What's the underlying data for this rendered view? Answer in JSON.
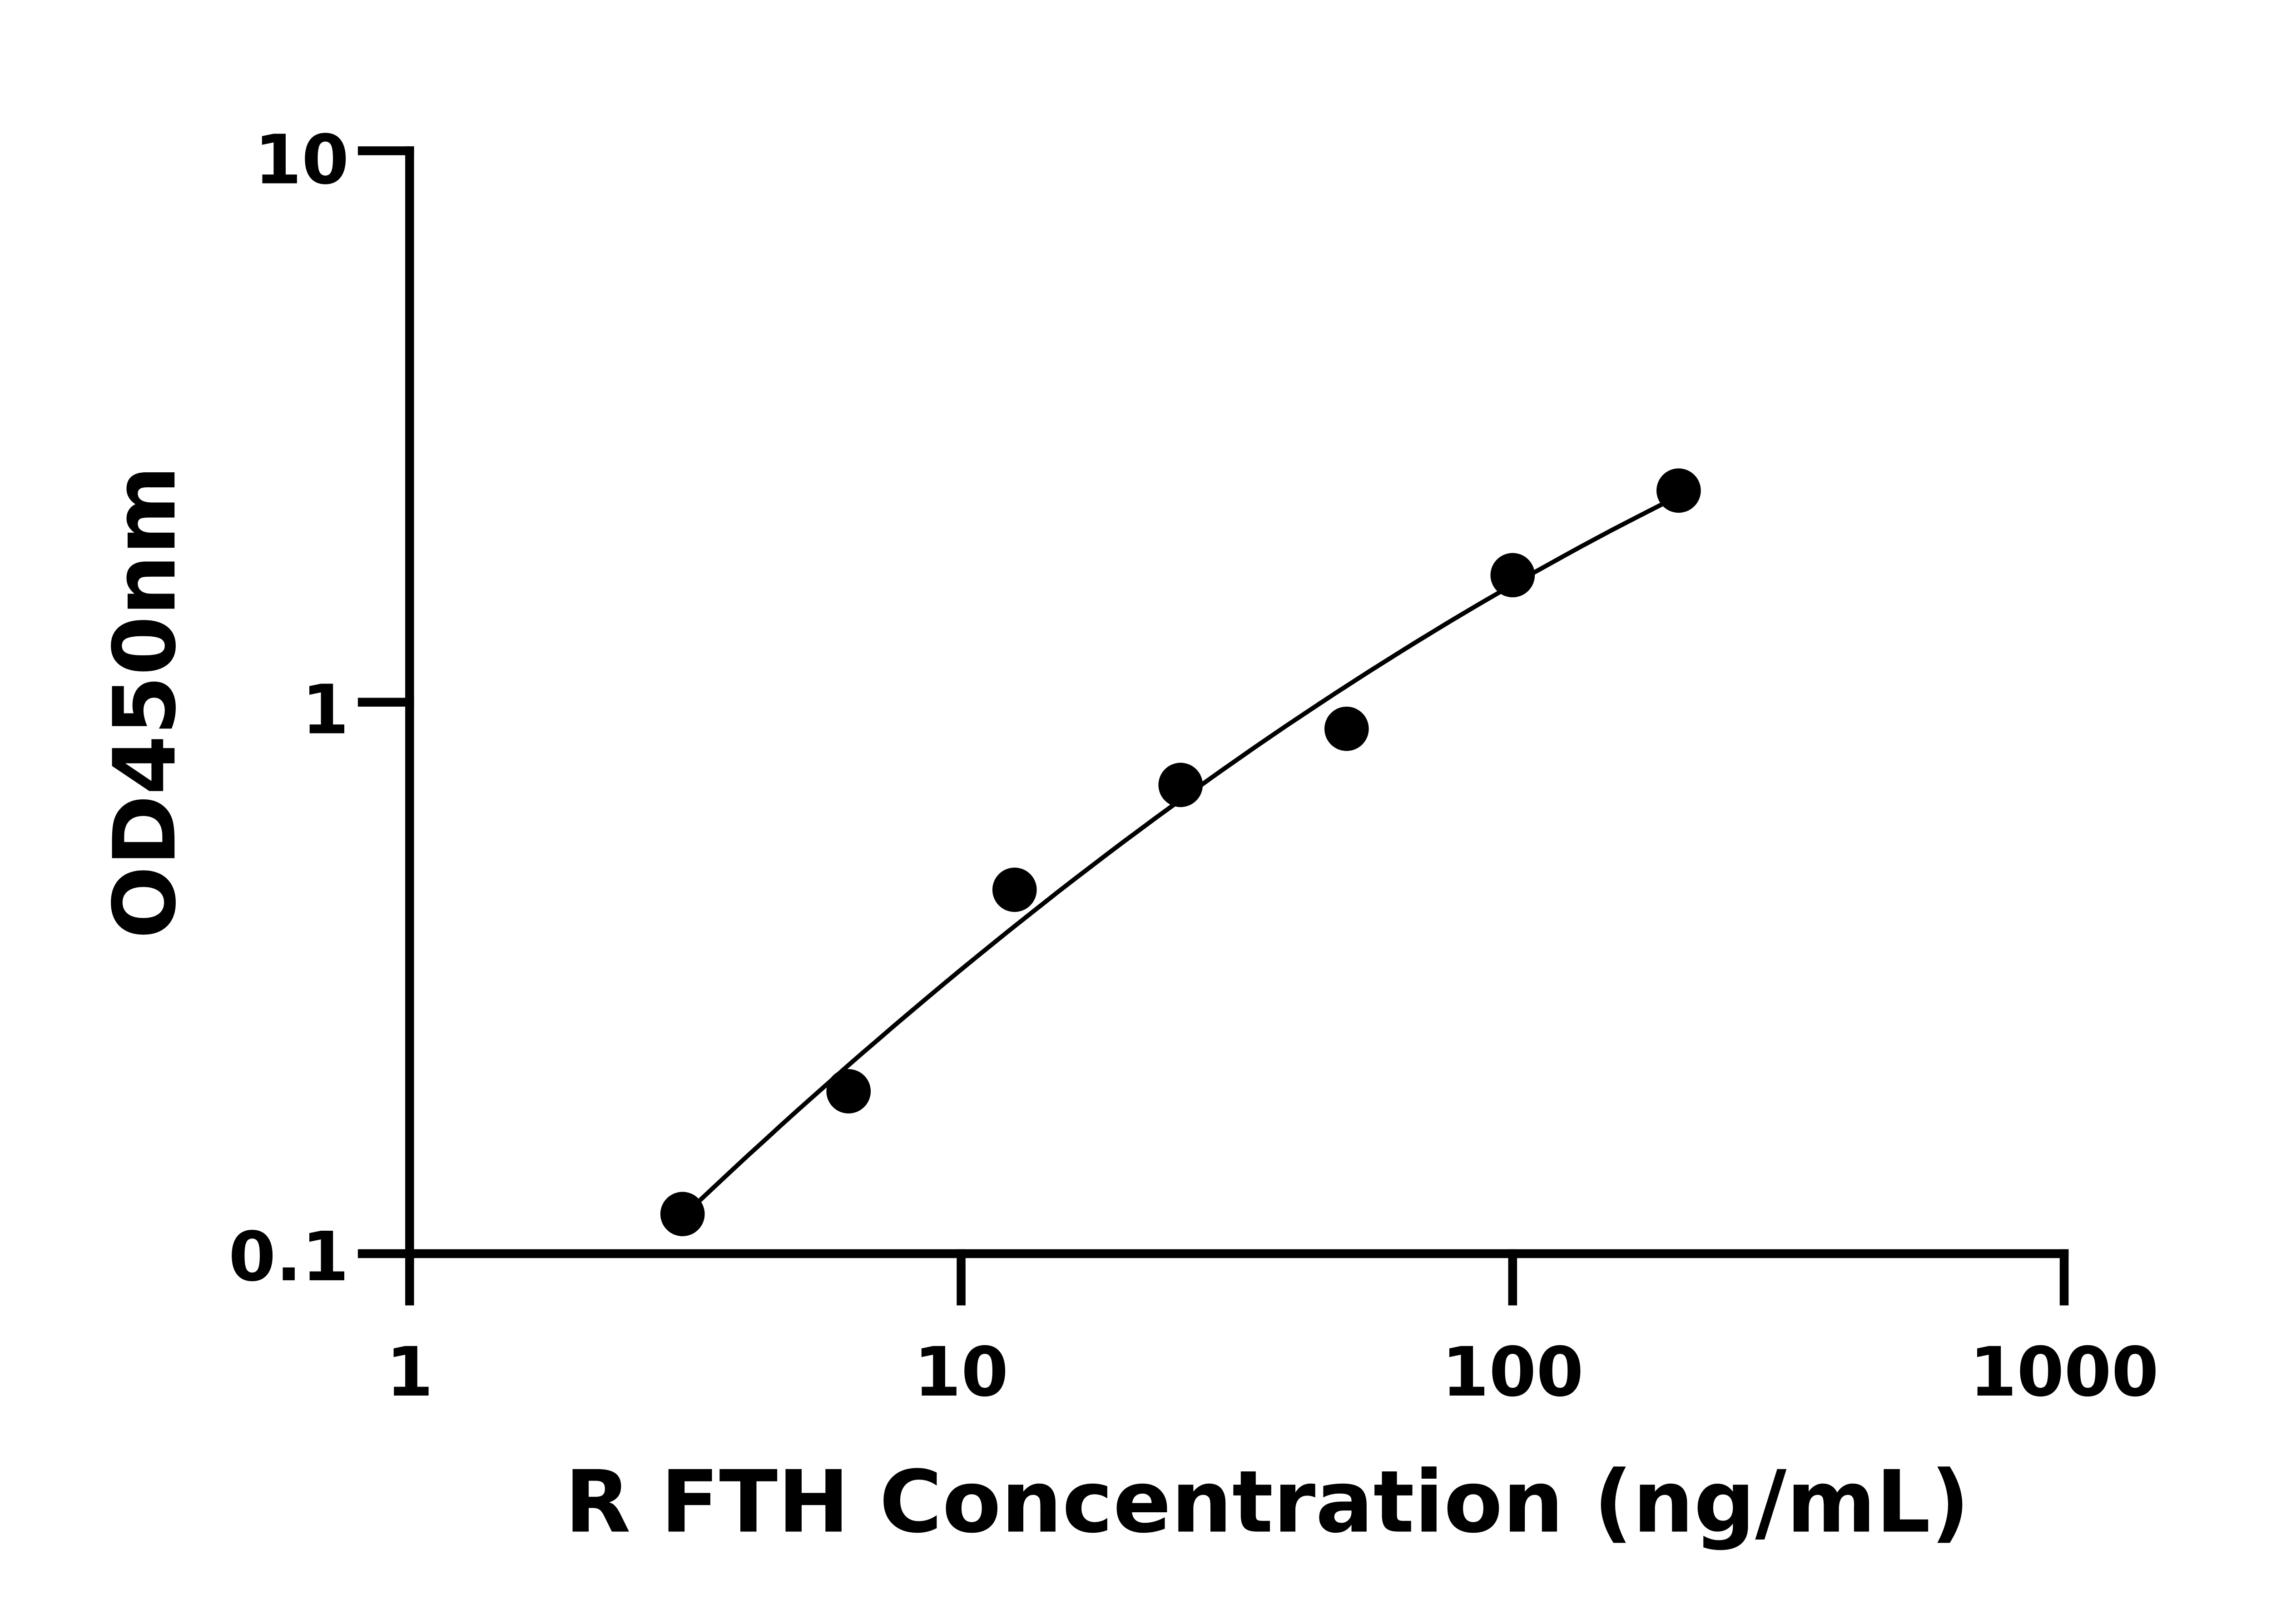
{
  "chart_data": {
    "type": "scatter",
    "title": "",
    "xlabel": "R FTH Concentration (ng/mL)",
    "ylabel": "OD450nm",
    "x_scale": "log",
    "y_scale": "log",
    "xlim": [
      1,
      1000
    ],
    "ylim": [
      0.1,
      10
    ],
    "x_ticks": [
      "1",
      "10",
      "100",
      "1000"
    ],
    "y_ticks": [
      "0.1",
      "1",
      "10"
    ],
    "grid": false,
    "legend": "none",
    "fit_curve": true,
    "marker_color": "#000000",
    "x": [
      3.125,
      6.25,
      12.5,
      25,
      50,
      100,
      200
    ],
    "y": [
      0.118,
      0.197,
      0.457,
      0.708,
      0.895,
      1.7,
      2.42
    ]
  }
}
